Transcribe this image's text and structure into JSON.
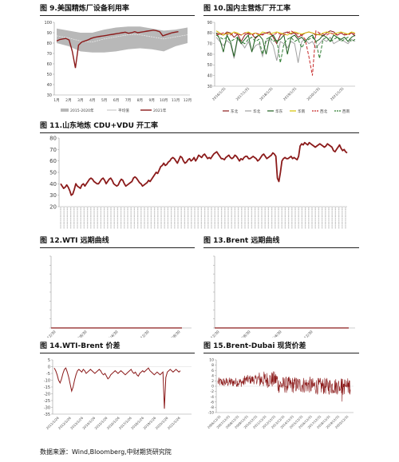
{
  "source_note": "数据来源：Wind,Bloomberg,中财期货研究院",
  "colors": {
    "dark_red": "#8b1a1a",
    "band_gray": "#b8b8b8",
    "axis": "#999999"
  },
  "chart_data": [
    {
      "id": "fig9",
      "type": "line",
      "title": "图 9.美国精炼厂设备利用率",
      "ylim": [
        30,
        100
      ],
      "yticks": [
        "100",
        "90",
        "80",
        "70",
        "60",
        "50",
        "40",
        "30"
      ],
      "categories": [
        "1月",
        "2月",
        "3月",
        "4月",
        "5月",
        "6月",
        "7月",
        "8月",
        "9月",
        "10月",
        "11月",
        "12月"
      ],
      "legend": [
        "2015-2020年",
        "平均值",
        "2021年"
      ],
      "band_low": [
        80,
        77,
        72,
        71,
        71,
        72,
        74,
        75,
        74,
        72,
        77,
        80
      ],
      "band_high": [
        94,
        92,
        90,
        90,
        93,
        95,
        96,
        96,
        94,
        92,
        93,
        95
      ],
      "avg": [
        87,
        85,
        82,
        81,
        84,
        86,
        88,
        88,
        86,
        84,
        86,
        88
      ],
      "series_2021": [
        82,
        83.5,
        84.0,
        84.5,
        83.0,
        72.0,
        56.0,
        78.0,
        81.0,
        82.0,
        83.0,
        84.5,
        85.5,
        86.0,
        86.5,
        87.0,
        87.5,
        88.0,
        88.5,
        89.0,
        89.5,
        90.0,
        90.5,
        89.5,
        90.0,
        91.0,
        90.0,
        90.5,
        91.0,
        91.5,
        92.0,
        92.5,
        92.0,
        91.0,
        87.0,
        88.0,
        89.0,
        90.0,
        90.5,
        91.0
      ]
    },
    {
      "id": "fig10",
      "type": "line",
      "title": "图 10.国内主营炼厂开工率",
      "ylim": [
        30,
        90
      ],
      "yticks": [
        "90",
        "80",
        "70",
        "60",
        "50",
        "40",
        "30"
      ],
      "xticks": [
        "2016/1/31",
        "2017/1/31",
        "2018/1/31",
        "2019/1/31",
        "2020/1/31",
        "2021/1/31"
      ],
      "series": [
        {
          "name": "东北",
          "color": "#8b1a1a",
          "dash": "",
          "values": [
            80,
            79,
            78,
            81,
            80,
            76,
            79,
            72,
            78,
            80,
            79,
            75,
            78,
            79,
            80,
            81,
            76,
            70,
            78,
            80,
            81,
            79,
            80,
            76,
            78,
            80,
            81,
            80,
            78,
            79,
            77,
            80,
            82,
            81,
            78,
            80,
            78,
            79,
            80,
            77
          ]
        },
        {
          "name": "华北",
          "color": "#a0a0a0",
          "dash": "",
          "values": [
            76,
            72,
            68,
            73,
            70,
            56,
            74,
            71,
            66,
            72,
            63,
            68,
            70,
            58,
            72,
            74,
            68,
            54,
            72,
            70,
            66,
            72,
            70,
            52,
            72,
            74,
            70,
            72,
            66,
            70,
            74,
            72,
            76,
            70,
            72,
            74,
            72,
            70,
            74,
            72
          ]
        },
        {
          "name": "华东",
          "color": "#1f5f1f",
          "dash": "",
          "values": [
            80,
            74,
            62,
            78,
            72,
            58,
            76,
            70,
            74,
            78,
            62,
            76,
            78,
            74,
            60,
            76,
            78,
            72,
            74,
            78,
            60,
            76,
            78,
            74,
            76,
            72,
            76,
            78,
            72,
            74,
            78,
            76,
            72,
            78,
            76,
            74,
            76,
            72,
            76,
            78
          ]
        },
        {
          "name": "华南",
          "color": "#d4c000",
          "dash": "",
          "values": [
            82,
            80,
            78,
            80,
            79,
            81,
            80,
            78,
            80,
            81,
            79,
            80,
            78,
            81,
            80,
            79,
            80,
            81,
            80,
            79,
            78,
            80,
            81,
            80,
            79,
            80,
            81,
            80,
            79,
            78,
            80,
            81,
            80,
            79,
            80,
            81,
            80,
            79,
            81,
            80
          ]
        },
        {
          "name": "西北",
          "color": "#c62828",
          "dash": "4,2",
          "values": [
            78,
            79,
            80,
            79,
            78,
            80,
            79,
            78,
            80,
            79,
            78,
            80,
            79,
            78,
            80,
            79,
            78,
            80,
            79,
            78,
            80,
            82,
            80,
            79,
            78,
            74,
            58,
            40,
            82,
            80,
            79,
            78,
            80,
            79,
            78,
            80,
            79,
            78,
            80,
            79
          ]
        },
        {
          "name": "西南",
          "color": "#2e7d32",
          "dash": "4,2",
          "values": [
            78,
            76,
            74,
            76,
            72,
            74,
            76,
            72,
            70,
            74,
            76,
            72,
            74,
            60,
            74,
            76,
            72,
            74,
            52,
            70,
            74,
            76,
            72,
            74,
            66,
            72,
            74,
            76,
            72,
            56,
            74,
            76,
            72,
            74,
            76,
            72,
            74,
            76,
            72,
            74
          ]
        }
      ]
    },
    {
      "id": "fig11",
      "type": "line",
      "title": "图 11.山东地炼 CDU+VDU 开工率",
      "ylim": [
        20,
        80
      ],
      "yticks": [
        "80",
        "70",
        "60",
        "50",
        "40",
        "30",
        "20"
      ],
      "values": [
        40,
        38,
        36,
        37,
        39,
        37,
        34,
        30,
        31,
        35,
        40,
        38,
        37,
        36,
        39,
        40,
        38,
        40,
        42,
        44,
        45,
        44,
        42,
        41,
        40,
        40,
        42,
        44,
        45,
        43,
        40,
        42,
        44,
        45,
        43,
        40,
        39,
        38,
        39,
        42,
        44,
        43,
        40,
        38,
        39,
        40,
        41,
        42,
        45,
        46,
        45,
        43,
        41,
        40,
        38,
        39,
        40,
        41,
        43,
        42,
        44,
        46,
        48,
        50,
        49,
        52,
        55,
        56,
        58,
        56,
        57,
        59,
        60,
        62,
        63,
        62,
        60,
        58,
        61,
        64,
        63,
        60,
        58,
        59,
        61,
        62,
        60,
        61,
        63,
        60,
        62,
        65,
        64,
        63,
        65,
        66,
        64,
        62,
        63,
        62,
        64,
        66,
        67,
        68,
        66,
        64,
        62,
        62,
        61,
        63,
        64,
        65,
        63,
        62,
        63,
        65,
        64,
        62,
        60,
        62,
        61,
        63,
        64,
        64,
        62,
        62,
        63,
        64,
        63,
        62,
        60,
        61,
        63,
        65,
        66,
        64,
        62,
        63,
        64,
        65,
        67,
        66,
        64,
        45,
        42,
        50,
        60,
        62,
        63,
        62,
        62,
        63,
        64,
        62,
        63,
        62,
        61,
        64,
        73,
        75,
        74,
        76,
        75,
        74,
        76,
        75,
        74,
        73,
        72,
        73,
        74,
        75,
        74,
        73,
        72,
        73,
        75,
        74,
        73,
        72,
        69,
        68,
        70,
        72,
        74,
        71,
        69,
        70,
        68,
        67
      ]
    },
    {
      "id": "fig12",
      "type": "line",
      "title": "图 12.WTI 远期曲线",
      "yticks": [
        "",
        "",
        "",
        "",
        "",
        "",
        "",
        "",
        ""
      ],
      "xticks": [
        "2021/12/30",
        "2023/8/30",
        "2025/4/30",
        "2026/12/30",
        "2028/8/30"
      ]
    },
    {
      "id": "fig13",
      "type": "line",
      "title": "图 13.Brent 远期曲线",
      "yticks": [
        "",
        "",
        "",
        "",
        "",
        "",
        "",
        "",
        ""
      ],
      "xticks": [
        "2021/12/30",
        "2023/8/30",
        "2025/4/30",
        "2026/12/30"
      ]
    },
    {
      "id": "fig14",
      "type": "line",
      "title": "图 14.WTI-Brent 价差",
      "ylim": [
        -35,
        5
      ],
      "yticks": [
        "5",
        "0",
        "-5",
        "-10",
        "-15",
        "-20",
        "-25",
        "-30",
        "-35"
      ],
      "xticks": [
        "2011/1/26",
        "2012/1/26",
        "2013/1/26",
        "2014/1/26",
        "2015/1/26",
        "2016/1/26",
        "2017/1/26",
        "2018/1/26",
        "2019/1/26",
        "2020/1/26",
        "2021/1/26"
      ],
      "values": [
        -1,
        -3,
        -6,
        -10,
        -12,
        -9,
        -5,
        -2,
        -1,
        -4,
        -8,
        -13,
        -18,
        -15,
        -10,
        -6,
        -3,
        -2,
        -3,
        -4,
        -2,
        -3,
        -5,
        -4,
        -3,
        -2,
        -3,
        -4,
        -5,
        -4,
        -3,
        -2,
        -3,
        -5,
        -6,
        -5,
        -7,
        -9,
        -8,
        -6,
        -5,
        -4,
        -3,
        -4,
        -5,
        -4,
        -3,
        -4,
        -5,
        -6,
        -5,
        -4,
        -3,
        -2,
        -4,
        -5,
        -4,
        -6,
        -7,
        -5,
        -4,
        -3,
        -4,
        -3,
        -2,
        -1,
        -3,
        -4,
        -5,
        -6,
        -5,
        -4,
        -5,
        -6,
        -5,
        -4,
        -31,
        -8,
        -4,
        -3,
        -2,
        -3,
        -4,
        -3,
        -2,
        -3,
        -4,
        -3
      ]
    },
    {
      "id": "fig15",
      "type": "line",
      "title": "图 15.Brent-Dubai 现货价差",
      "ylim": [
        -10,
        10
      ],
      "yticks": [
        "10",
        "8",
        "6",
        "4",
        "2",
        "0",
        "-2",
        "-4",
        "-6",
        "-8",
        "-10"
      ],
      "xticks": [
        "2006/12/31",
        "2007/12/31",
        "2008/12/31",
        "2009/12/31",
        "2010/12/31",
        "2011/12/31",
        "2012/12/31",
        "2013/12/31",
        "2014/12/31",
        "2015/12/31",
        "2016/12/31",
        "2017/12/31",
        "2018/12/31",
        "2019/12/31",
        "2020/12/31"
      ]
    }
  ]
}
